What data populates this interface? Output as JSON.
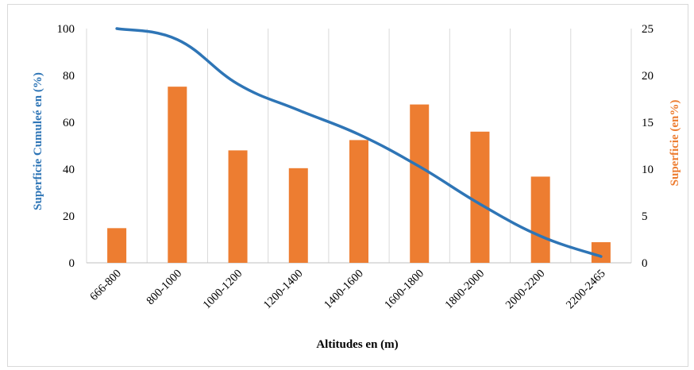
{
  "chart_data": {
    "type": "bar+line",
    "categories": [
      "666-800",
      "800-1000",
      "1000-1200",
      "1200-1400",
      "1400-1600",
      "1600-1800",
      "1800-2000",
      "2000-2200",
      "2200-2465"
    ],
    "series": [
      {
        "name": "Superficie (en%)",
        "type": "bar",
        "axis": "right",
        "color": "#ed7d31",
        "values": [
          3.7,
          18.8,
          12.0,
          10.1,
          13.1,
          16.9,
          14.0,
          9.2,
          2.2
        ]
      },
      {
        "name": "Superficie Cumuleé en (%)",
        "type": "line",
        "axis": "left",
        "color": "#2e75b6",
        "values": [
          100,
          95.3,
          76.3,
          65.2,
          54.8,
          41.1,
          25.1,
          11.4,
          2.7
        ]
      }
    ],
    "xlabel": "Altitudes en (m)",
    "ylabel_left": "Superficie Cumuleé en (%)",
    "ylabel_right": "Superficie (en%)",
    "ylim_left": [
      0,
      100
    ],
    "ylim_right": [
      0,
      25
    ],
    "yticks_left": [
      "0",
      "20",
      "40",
      "60",
      "80",
      "100"
    ],
    "yticks_right": [
      "0",
      "5",
      "10",
      "15",
      "20",
      "25"
    ],
    "grid": "vertical",
    "legend": "none"
  }
}
